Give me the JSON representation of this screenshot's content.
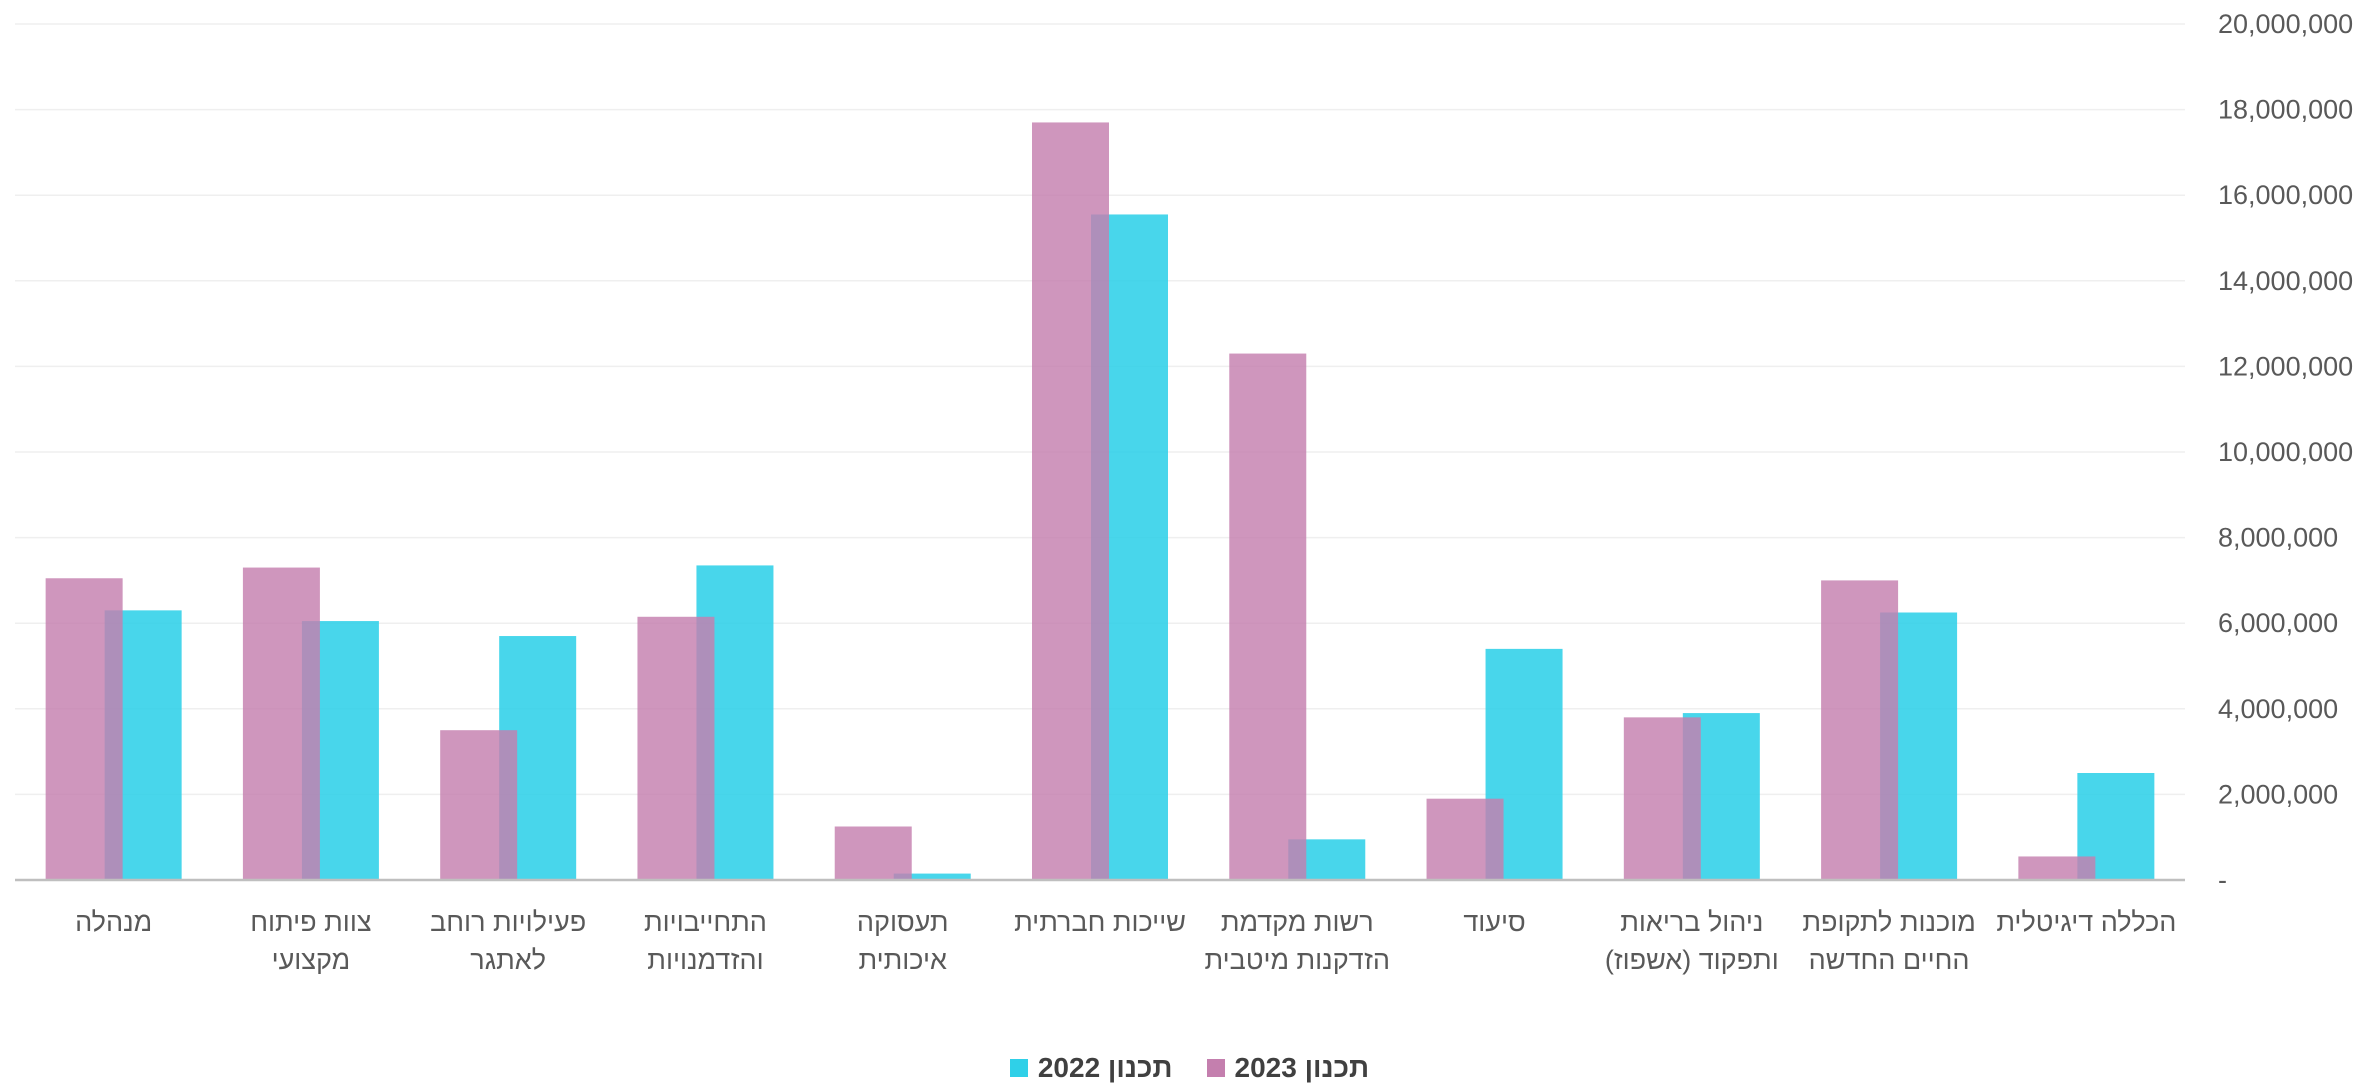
{
  "chart_data": {
    "type": "bar",
    "categories": [
      "הכללה דיגיטלית",
      "מוכנות לתקופת החיים החדשה",
      "ניהול בריאות ותפקוד (אשפוז)",
      "סיעוד",
      "רשות מקדמת הזדקנות מיטבית",
      "שייכות חברתית",
      "תעסוקה איכותית",
      "התחייבויות והזדמנויות",
      "פעילויות רוחב לאתגר",
      "צוות פיתוח מקצועי",
      "מנהלה"
    ],
    "series": [
      {
        "name": "תכנון 2023",
        "color": "#c47fae",
        "values": [
          550000,
          7000000,
          3800000,
          1900000,
          12300000,
          17700000,
          1250000,
          6150000,
          3500000,
          7300000,
          7050000
        ]
      },
      {
        "name": "תכנון 2022",
        "color": "#2fd0e8",
        "values": [
          2500000,
          6250000,
          3900000,
          5400000,
          950000,
          15550000,
          150000,
          7350000,
          5700000,
          6050000,
          6300000
        ]
      }
    ],
    "ylim": [
      0,
      20000000
    ],
    "yticks": [
      {
        "value": 0,
        "label": "-"
      },
      {
        "value": 2000000,
        "label": "2,000,000"
      },
      {
        "value": 4000000,
        "label": "4,000,000"
      },
      {
        "value": 6000000,
        "label": "6,000,000"
      },
      {
        "value": 8000000,
        "label": "8,000,000"
      },
      {
        "value": 10000000,
        "label": "10,000,000"
      },
      {
        "value": 12000000,
        "label": "12,000,000"
      },
      {
        "value": 14000000,
        "label": "14,000,000"
      },
      {
        "value": 16000000,
        "label": "16,000,000"
      },
      {
        "value": 18000000,
        "label": "18,000,000"
      },
      {
        "value": 20000000,
        "label": "20,000,000"
      }
    ],
    "grid": true,
    "legend": "bottom"
  }
}
